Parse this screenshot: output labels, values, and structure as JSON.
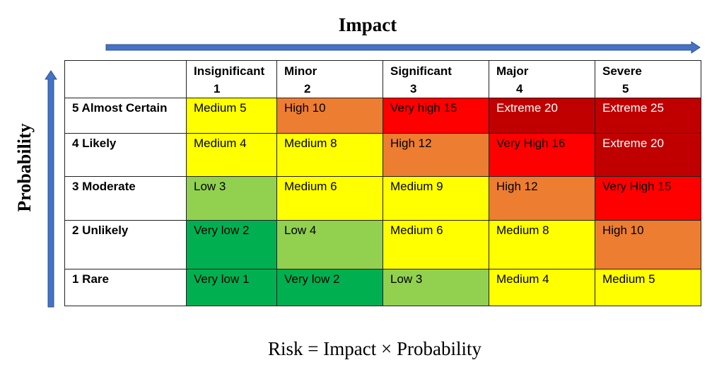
{
  "title": "Impact",
  "y_axis_label": "Probability",
  "formula": "Risk = Impact × Probability",
  "columns": [
    {
      "label": "Insignificant",
      "num": "1"
    },
    {
      "label": "Minor",
      "num": "2"
    },
    {
      "label": "Significant",
      "num": "3"
    },
    {
      "label": "Major",
      "num": "4"
    },
    {
      "label": "Severe",
      "num": "5"
    }
  ],
  "rows": [
    {
      "label": "5 Almost Certain",
      "cells": [
        "Medium 5",
        "High 10",
        "Very high 15",
        "Extreme 20",
        "Extreme 25"
      ],
      "levels": [
        "medium",
        "high",
        "veryhigh",
        "extreme",
        "extreme"
      ]
    },
    {
      "label": "4 Likely",
      "cells": [
        "Medium 4",
        "Medium 8",
        "High 12",
        "Very High 16",
        "Extreme 20"
      ],
      "levels": [
        "medium",
        "medium",
        "high",
        "veryhigh",
        "extreme"
      ]
    },
    {
      "label": "3 Moderate",
      "cells": [
        "Low 3",
        "Medium 6",
        "Medium 9",
        "High 12",
        "Very High 15"
      ],
      "levels": [
        "low",
        "medium",
        "medium",
        "high",
        "veryhigh"
      ]
    },
    {
      "label": "2 Unlikely",
      "cells": [
        "Very low 2",
        "Low 4",
        "Medium 6",
        "Medium 8",
        "High 10"
      ],
      "levels": [
        "verylow",
        "low",
        "medium",
        "medium",
        "high"
      ]
    },
    {
      "label": "1 Rare",
      "cells": [
        "Very low 1",
        "Very low 2",
        "Low 3",
        "Medium 4",
        "Medium 5"
      ],
      "levels": [
        "verylow",
        "verylow",
        "low",
        "medium",
        "medium"
      ]
    }
  ],
  "colors": {
    "verylow": "#00b050",
    "low": "#92d050",
    "medium": "#ffff00",
    "high": "#ed7d31",
    "veryhigh": "#ff0000",
    "extreme": "#c00000",
    "arrow": "#4472c4"
  }
}
